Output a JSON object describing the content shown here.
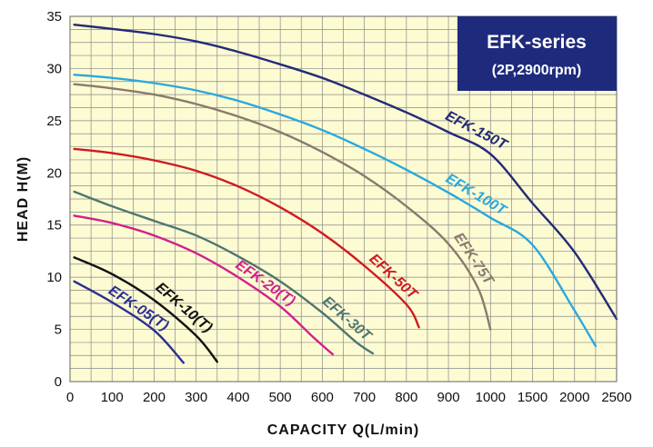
{
  "chart_data": {
    "type": "line",
    "title": "EFK-series",
    "subtitle": "(2P,2900rpm)",
    "xlabel": "CAPACITY  Q(L/min)",
    "ylabel": "HEAD  H(M)",
    "grid": true,
    "x_ticks": [
      0,
      100,
      200,
      300,
      400,
      500,
      600,
      700,
      800,
      900,
      1000,
      1500,
      2000,
      2500
    ],
    "y_ticks": [
      0,
      5,
      10,
      15,
      20,
      25,
      30,
      35
    ],
    "ylim": [
      0,
      35
    ],
    "colors": {
      "plot_background": "#fdfbd2",
      "grid": "#8a8a8a",
      "title_box": "#1e2b7c"
    },
    "series": [
      {
        "name": "EFK-05(T)",
        "color": "#2b3090",
        "points": [
          [
            10,
            9.6
          ],
          [
            100,
            7.6
          ],
          [
            200,
            4.9
          ],
          [
            270,
            1.8
          ]
        ]
      },
      {
        "name": "EFK-10(T)",
        "color": "#111111",
        "points": [
          [
            10,
            11.9
          ],
          [
            100,
            10.3
          ],
          [
            200,
            7.8
          ],
          [
            300,
            4.4
          ],
          [
            350,
            1.9
          ]
        ]
      },
      {
        "name": "EFK-20(T)",
        "color": "#d1218c",
        "points": [
          [
            10,
            15.9
          ],
          [
            100,
            15.2
          ],
          [
            200,
            14.0
          ],
          [
            300,
            12.3
          ],
          [
            400,
            10.0
          ],
          [
            500,
            7.2
          ],
          [
            580,
            4.2
          ],
          [
            625,
            2.6
          ]
        ]
      },
      {
        "name": "EFK-30T",
        "color": "#4f7571",
        "points": [
          [
            10,
            18.2
          ],
          [
            100,
            16.8
          ],
          [
            200,
            15.4
          ],
          [
            300,
            14.0
          ],
          [
            400,
            12.0
          ],
          [
            500,
            9.6
          ],
          [
            600,
            6.6
          ],
          [
            680,
            3.8
          ],
          [
            720,
            2.7
          ]
        ]
      },
      {
        "name": "EFK-50T",
        "color": "#cf1a21",
        "points": [
          [
            10,
            22.3
          ],
          [
            100,
            21.9
          ],
          [
            200,
            21.2
          ],
          [
            300,
            20.2
          ],
          [
            400,
            18.7
          ],
          [
            500,
            16.7
          ],
          [
            600,
            14.2
          ],
          [
            700,
            11.1
          ],
          [
            800,
            7.4
          ],
          [
            830,
            5.2
          ]
        ]
      },
      {
        "name": "EFK-75T",
        "color": "#8a7a6d",
        "points": [
          [
            10,
            28.5
          ],
          [
            100,
            28.1
          ],
          [
            200,
            27.5
          ],
          [
            300,
            26.6
          ],
          [
            400,
            25.4
          ],
          [
            500,
            23.9
          ],
          [
            600,
            22.0
          ],
          [
            700,
            19.7
          ],
          [
            800,
            16.8
          ],
          [
            900,
            13.2
          ],
          [
            970,
            9.0
          ],
          [
            1000,
            5.0
          ]
        ]
      },
      {
        "name": "EFK-100T",
        "color": "#2aa8df",
        "points": [
          [
            10,
            29.4
          ],
          [
            100,
            29.1
          ],
          [
            200,
            28.6
          ],
          [
            300,
            27.9
          ],
          [
            400,
            26.9
          ],
          [
            500,
            25.6
          ],
          [
            600,
            24.1
          ],
          [
            700,
            22.3
          ],
          [
            800,
            20.3
          ],
          [
            900,
            18.1
          ],
          [
            1000,
            15.7
          ],
          [
            1500,
            13.1
          ],
          [
            2000,
            6.8
          ],
          [
            2250,
            3.4
          ]
        ]
      },
      {
        "name": "EFK-150T",
        "color": "#232a77",
        "points": [
          [
            10,
            34.2
          ],
          [
            100,
            33.8
          ],
          [
            200,
            33.3
          ],
          [
            300,
            32.6
          ],
          [
            400,
            31.6
          ],
          [
            500,
            30.4
          ],
          [
            600,
            29.1
          ],
          [
            700,
            27.5
          ],
          [
            800,
            25.8
          ],
          [
            900,
            23.9
          ],
          [
            1000,
            21.8
          ],
          [
            1500,
            17.1
          ],
          [
            2000,
            12.4
          ],
          [
            2500,
            6.0
          ]
        ]
      }
    ]
  }
}
